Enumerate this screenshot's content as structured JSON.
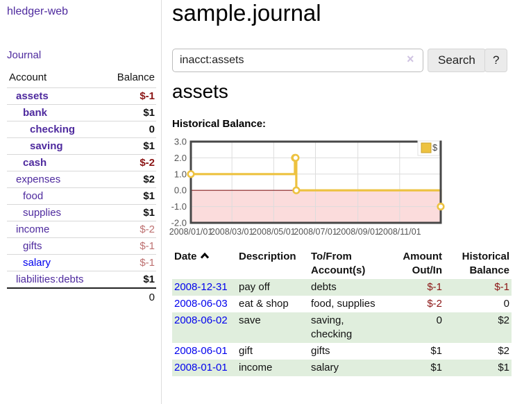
{
  "app": {
    "title": "hledger-web"
  },
  "sidebar": {
    "journal_link": "Journal",
    "accounts": {
      "headers": {
        "account": "Account",
        "balance": "Balance"
      },
      "rows": [
        {
          "account": "assets",
          "balance": "$-1",
          "depth": 1,
          "bold": true,
          "link": "purple"
        },
        {
          "account": "bank",
          "balance": "$1",
          "depth": 2,
          "bold": true,
          "link": "purple"
        },
        {
          "account": "checking",
          "balance": "0",
          "depth": 3,
          "bold": true,
          "link": "purple"
        },
        {
          "account": "saving",
          "balance": "$1",
          "depth": 3,
          "bold": true,
          "link": "purple"
        },
        {
          "account": "cash",
          "balance": "$-2",
          "depth": 2,
          "bold": true,
          "link": "purple"
        },
        {
          "account": "expenses",
          "balance": "$2",
          "depth": 1,
          "bold": false,
          "link": "purple"
        },
        {
          "account": "food",
          "balance": "$1",
          "depth": 2,
          "bold": false,
          "link": "purple"
        },
        {
          "account": "supplies",
          "balance": "$1",
          "depth": 2,
          "bold": false,
          "link": "purple"
        },
        {
          "account": "income",
          "balance": "$-2",
          "depth": 1,
          "bold": false,
          "link": "purple"
        },
        {
          "account": "gifts",
          "balance": "$-1",
          "depth": 2,
          "bold": false,
          "link": "purple"
        },
        {
          "account": "salary",
          "balance": "$-1",
          "depth": 2,
          "bold": false,
          "link": "blue"
        },
        {
          "account": "liabilities:debts",
          "balance": "$1",
          "depth": 1,
          "bold": false,
          "link": "purple"
        }
      ],
      "total": "0"
    }
  },
  "main": {
    "title": "sample.journal",
    "search": {
      "value": "inacct:assets",
      "clear_icon": "×",
      "search_label": "Search",
      "help_label": "?"
    },
    "account_heading": "assets",
    "chart_heading": "Historical Balance:"
  },
  "chart_data": {
    "type": "line",
    "title": "Historical Balance:",
    "x": [
      "2008-01-01",
      "2008-06-01",
      "2008-06-02",
      "2008-06-03",
      "2008-12-31"
    ],
    "series": [
      {
        "name": "$",
        "values": [
          1,
          2,
          2,
          0,
          -1
        ],
        "color": "#edc240",
        "step": true,
        "markers": "open-circle"
      }
    ],
    "xlim": [
      "2008-01-01",
      "2008-12-31"
    ],
    "ylim": [
      -2,
      3
    ],
    "y_ticks": [
      "3.0",
      "2.0",
      "1.0",
      "0.0",
      "-1.0",
      "-2.0"
    ],
    "x_tick_dates": [
      "2008-01-01",
      "2008-03-01",
      "2008-05-01",
      "2008-07-01",
      "2008-09-01",
      "2008-11-01"
    ],
    "x_tick_labels": [
      "2008/01/01",
      "2008/03/01",
      "2008/05/01",
      "2008/07/01",
      "2008/09/01",
      "2008/11/01"
    ],
    "legend": {
      "label": "$",
      "position": "top-right"
    },
    "grid": true,
    "negative_region_fill": "#fbdcdc",
    "zero_line_color": "#8b2020",
    "plot_border_color": "#474747",
    "grid_color": "#dcdcdc",
    "tick_text_color": "#545454"
  },
  "register": {
    "headers": {
      "date": "Date",
      "description": "Description",
      "accounts": "To/From Account(s)",
      "amount": "Amount Out/In",
      "balance": "Historical Balance"
    },
    "sort": {
      "column": "date",
      "direction": "ascending"
    },
    "rows": [
      {
        "date": "2008-12-31",
        "description": "pay off",
        "accounts": "debts",
        "amount": "$-1",
        "balance": "$-1"
      },
      {
        "date": "2008-06-03",
        "description": "eat & shop",
        "accounts": "food, supplies",
        "amount": "$-2",
        "balance": "0"
      },
      {
        "date": "2008-06-02",
        "description": "save",
        "accounts": "saving, checking",
        "amount": "0",
        "balance": "$2"
      },
      {
        "date": "2008-06-01",
        "description": "gift",
        "accounts": "gifts",
        "amount": "$1",
        "balance": "$2"
      },
      {
        "date": "2008-01-01",
        "description": "income",
        "accounts": "salary",
        "amount": "$1",
        "balance": "$1"
      }
    ]
  },
  "colors": {
    "link_visited_purple": "#4e2a9e",
    "link_blue": "#0000ee",
    "negative_strong": "#8b1515",
    "negative_soft": "#bd7070",
    "row_shade_green": "#e0eedd",
    "series_gold": "#edc240"
  }
}
